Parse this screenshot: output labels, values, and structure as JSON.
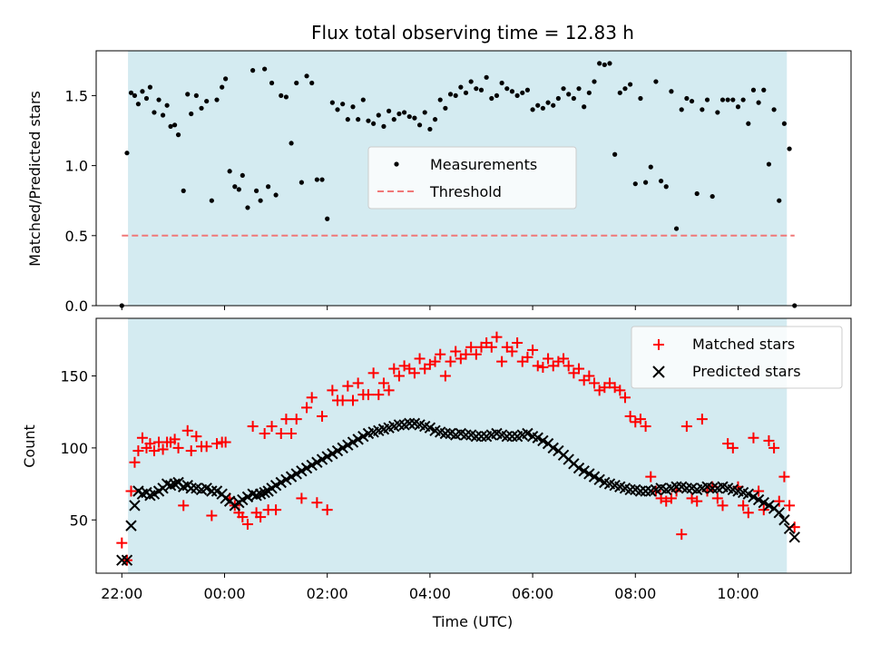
{
  "figure": {
    "title": "Flux total observing time = 12.83 h"
  },
  "chart_data": [
    {
      "type": "scatter",
      "panel": "top",
      "title": "Flux total observing time = 12.83 h",
      "xlabel": "",
      "ylabel": "Matched/Predicted stars",
      "x_unit": "hours since 22:00 UTC (axis shows clock time)",
      "xlim": [
        -0.5,
        14.2
      ],
      "ylim": [
        0,
        1.82
      ],
      "yticks": [
        0.0,
        0.5,
        1.0,
        1.5
      ],
      "ytick_labels": [
        "0.0",
        "0.5",
        "1.0",
        "1.5"
      ],
      "shaded_span": [
        0.12,
        12.95
      ],
      "shade_color": "#d4ebf1",
      "legend": {
        "position": "center",
        "entries": [
          "Measurements",
          "Threshold"
        ]
      },
      "threshold": {
        "name": "Threshold",
        "value": 0.5,
        "x_range": [
          0.0,
          13.1
        ],
        "color": "#f07878",
        "style": "dashed"
      },
      "series": [
        {
          "name": "Measurements",
          "marker": "dot",
          "color": "#000000",
          "x": [
            0.0,
            0.1,
            0.18,
            0.25,
            0.32,
            0.4,
            0.48,
            0.55,
            0.63,
            0.72,
            0.8,
            0.88,
            0.95,
            1.03,
            1.1,
            1.2,
            1.28,
            1.35,
            1.45,
            1.55,
            1.65,
            1.75,
            1.85,
            1.95,
            2.02,
            2.1,
            2.2,
            2.28,
            2.35,
            2.45,
            2.55,
            2.62,
            2.7,
            2.78,
            2.85,
            2.92,
            3.0,
            3.1,
            3.2,
            3.3,
            3.4,
            3.5,
            3.6,
            3.7,
            3.8,
            3.9,
            4.0,
            4.1,
            4.2,
            4.3,
            4.4,
            4.5,
            4.6,
            4.7,
            4.8,
            4.9,
            5.0,
            5.1,
            5.2,
            5.3,
            5.4,
            5.5,
            5.6,
            5.7,
            5.8,
            5.9,
            6.0,
            6.1,
            6.2,
            6.3,
            6.4,
            6.5,
            6.6,
            6.7,
            6.8,
            6.9,
            7.0,
            7.1,
            7.2,
            7.3,
            7.4,
            7.5,
            7.6,
            7.7,
            7.8,
            7.9,
            8.0,
            8.1,
            8.2,
            8.3,
            8.4,
            8.5,
            8.6,
            8.7,
            8.8,
            8.9,
            9.0,
            9.1,
            9.2,
            9.3,
            9.4,
            9.5,
            9.6,
            9.7,
            9.8,
            9.9,
            10.0,
            10.1,
            10.2,
            10.3,
            10.4,
            10.5,
            10.6,
            10.7,
            10.8,
            10.9,
            11.0,
            11.1,
            11.2,
            11.3,
            11.4,
            11.5,
            11.6,
            11.7,
            11.8,
            11.9,
            12.0,
            12.1,
            12.2,
            12.3,
            12.4,
            12.5,
            12.6,
            12.7,
            12.8,
            12.9,
            13.0,
            13.1
          ],
          "y": [
            0.0,
            1.09,
            1.52,
            1.5,
            1.44,
            1.53,
            1.48,
            1.56,
            1.38,
            1.47,
            1.36,
            1.43,
            1.28,
            1.29,
            1.22,
            0.82,
            1.51,
            1.37,
            1.5,
            1.41,
            1.46,
            0.75,
            1.47,
            1.56,
            1.62,
            0.96,
            0.85,
            0.83,
            0.93,
            0.7,
            1.68,
            0.82,
            0.75,
            1.69,
            0.85,
            1.59,
            0.79,
            1.5,
            1.49,
            1.16,
            1.59,
            0.88,
            1.64,
            1.59,
            0.9,
            0.9,
            0.62,
            1.45,
            1.4,
            1.44,
            1.33,
            1.42,
            1.33,
            1.47,
            1.32,
            1.3,
            1.36,
            1.28,
            1.39,
            1.33,
            1.37,
            1.38,
            1.35,
            1.34,
            1.29,
            1.38,
            1.26,
            1.33,
            1.47,
            1.41,
            1.51,
            1.5,
            1.56,
            1.52,
            1.6,
            1.55,
            1.54,
            1.63,
            1.48,
            1.5,
            1.59,
            1.55,
            1.53,
            1.5,
            1.52,
            1.54,
            1.4,
            1.43,
            1.41,
            1.45,
            1.43,
            1.48,
            1.55,
            1.51,
            1.48,
            1.55,
            1.42,
            1.52,
            1.6,
            1.73,
            1.72,
            1.73,
            1.08,
            1.52,
            1.55,
            1.58,
            0.87,
            1.48,
            0.88,
            0.99,
            1.6,
            0.89,
            0.85,
            1.53,
            0.55,
            1.4,
            1.48,
            1.46,
            0.8,
            1.4,
            1.47,
            0.78,
            1.38,
            1.47,
            1.47,
            1.47,
            1.42,
            1.47,
            1.3,
            1.54,
            1.45,
            1.54,
            1.01,
            1.4,
            0.75,
            1.3,
            1.12,
            0.0
          ]
        }
      ]
    },
    {
      "type": "scatter",
      "panel": "bottom",
      "xlabel": "Time (UTC)",
      "ylabel": "Count",
      "x_unit": "hours since 22:00 UTC (axis shows clock time)",
      "xlim": [
        -0.5,
        14.2
      ],
      "ylim": [
        13,
        190
      ],
      "xticks": [
        0,
        2,
        4,
        6,
        8,
        10,
        12
      ],
      "xtick_labels": [
        "22:00",
        "00:00",
        "02:00",
        "04:00",
        "06:00",
        "08:00",
        "10:00"
      ],
      "yticks": [
        50,
        100,
        150
      ],
      "ytick_labels": [
        "50",
        "100",
        "150"
      ],
      "shaded_span": [
        0.12,
        12.95
      ],
      "shade_color": "#d4ebf1",
      "legend": {
        "position": "top-right",
        "entries": [
          "Matched stars",
          "Predicted stars"
        ]
      },
      "series": [
        {
          "name": "Matched stars",
          "marker": "plus",
          "color": "#ff0000",
          "x": [
            0.0,
            0.1,
            0.18,
            0.25,
            0.32,
            0.4,
            0.48,
            0.55,
            0.63,
            0.72,
            0.8,
            0.88,
            0.95,
            1.03,
            1.1,
            1.2,
            1.28,
            1.35,
            1.45,
            1.55,
            1.65,
            1.75,
            1.85,
            1.95,
            2.02,
            2.1,
            2.2,
            2.28,
            2.35,
            2.45,
            2.55,
            2.62,
            2.7,
            2.78,
            2.85,
            2.92,
            3.0,
            3.1,
            3.2,
            3.3,
            3.4,
            3.5,
            3.6,
            3.7,
            3.8,
            3.9,
            4.0,
            4.1,
            4.2,
            4.3,
            4.4,
            4.5,
            4.6,
            4.7,
            4.8,
            4.9,
            5.0,
            5.1,
            5.2,
            5.3,
            5.4,
            5.5,
            5.6,
            5.7,
            5.8,
            5.9,
            6.0,
            6.1,
            6.2,
            6.3,
            6.4,
            6.5,
            6.6,
            6.7,
            6.8,
            6.9,
            7.0,
            7.1,
            7.2,
            7.3,
            7.4,
            7.5,
            7.6,
            7.7,
            7.8,
            7.9,
            8.0,
            8.1,
            8.2,
            8.3,
            8.4,
            8.5,
            8.6,
            8.7,
            8.8,
            8.9,
            9.0,
            9.1,
            9.2,
            9.3,
            9.4,
            9.5,
            9.6,
            9.7,
            9.8,
            9.9,
            10.0,
            10.1,
            10.2,
            10.3,
            10.4,
            10.5,
            10.6,
            10.7,
            10.8,
            10.9,
            11.0,
            11.1,
            11.2,
            11.3,
            11.4,
            11.5,
            11.6,
            11.7,
            11.8,
            11.9,
            12.0,
            12.1,
            12.2,
            12.3,
            12.4,
            12.5,
            12.6,
            12.7,
            12.8,
            12.9,
            13.0,
            13.1
          ],
          "y": [
            34,
            22,
            70,
            90,
            98,
            107,
            100,
            103,
            98,
            104,
            99,
            104,
            104,
            106,
            100,
            60,
            112,
            98,
            108,
            101,
            101,
            53,
            103,
            104,
            104,
            65,
            60,
            55,
            52,
            47,
            115,
            55,
            52,
            110,
            57,
            115,
            57,
            110,
            120,
            110,
            120,
            65,
            128,
            135,
            62,
            122,
            57,
            140,
            133,
            133,
            143,
            133,
            145,
            137,
            137,
            152,
            137,
            145,
            140,
            155,
            150,
            157,
            155,
            152,
            162,
            155,
            158,
            160,
            165,
            150,
            160,
            167,
            162,
            165,
            170,
            165,
            170,
            173,
            170,
            177,
            160,
            170,
            167,
            173,
            160,
            163,
            168,
            157,
            156,
            162,
            157,
            160,
            162,
            157,
            152,
            155,
            147,
            150,
            145,
            140,
            142,
            145,
            142,
            140,
            135,
            122,
            118,
            120,
            115,
            80,
            70,
            65,
            63,
            65,
            70,
            40,
            115,
            65,
            63,
            120,
            70,
            73,
            65,
            60,
            103,
            100,
            73,
            60,
            55,
            107,
            70,
            57,
            105,
            100,
            63,
            80,
            60,
            45
          ]
        },
        {
          "name": "Predicted stars",
          "marker": "x",
          "color": "#000000",
          "x": [
            0.0,
            0.1,
            0.18,
            0.25,
            0.32,
            0.4,
            0.48,
            0.55,
            0.63,
            0.72,
            0.8,
            0.88,
            0.95,
            1.03,
            1.1,
            1.2,
            1.28,
            1.35,
            1.45,
            1.55,
            1.65,
            1.75,
            1.85,
            1.95,
            2.02,
            2.1,
            2.2,
            2.28,
            2.35,
            2.45,
            2.55,
            2.62,
            2.7,
            2.78,
            2.85,
            2.92,
            3.0,
            3.1,
            3.2,
            3.3,
            3.4,
            3.5,
            3.6,
            3.7,
            3.8,
            3.9,
            4.0,
            4.1,
            4.2,
            4.3,
            4.4,
            4.5,
            4.6,
            4.7,
            4.8,
            4.9,
            5.0,
            5.1,
            5.2,
            5.3,
            5.4,
            5.5,
            5.6,
            5.7,
            5.8,
            5.9,
            6.0,
            6.1,
            6.2,
            6.3,
            6.4,
            6.5,
            6.6,
            6.7,
            6.8,
            6.9,
            7.0,
            7.1,
            7.2,
            7.3,
            7.4,
            7.5,
            7.6,
            7.7,
            7.8,
            7.9,
            8.0,
            8.1,
            8.2,
            8.3,
            8.4,
            8.5,
            8.6,
            8.7,
            8.8,
            8.9,
            9.0,
            9.1,
            9.2,
            9.3,
            9.4,
            9.5,
            9.6,
            9.7,
            9.8,
            9.9,
            10.0,
            10.1,
            10.2,
            10.3,
            10.4,
            10.5,
            10.6,
            10.7,
            10.8,
            10.9,
            11.0,
            11.1,
            11.2,
            11.3,
            11.4,
            11.5,
            11.6,
            11.7,
            11.8,
            11.9,
            12.0,
            12.1,
            12.2,
            12.3,
            12.4,
            12.5,
            12.6,
            12.7,
            12.8,
            12.9,
            13.0,
            13.1
          ],
          "y": [
            22,
            22,
            46,
            60,
            70,
            68,
            69,
            67,
            68,
            70,
            72,
            75,
            74,
            75,
            76,
            73,
            74,
            72,
            72,
            71,
            72,
            70,
            70,
            68,
            65,
            63,
            60,
            62,
            64,
            66,
            68,
            67,
            68,
            69,
            70,
            72,
            74,
            76,
            78,
            80,
            82,
            84,
            86,
            88,
            90,
            92,
            94,
            96,
            98,
            100,
            102,
            104,
            106,
            108,
            110,
            111,
            112,
            113,
            114,
            115,
            116,
            116,
            117,
            117,
            116,
            115,
            114,
            112,
            111,
            110,
            110,
            109,
            110,
            109,
            109,
            108,
            108,
            108,
            109,
            110,
            109,
            108,
            108,
            108,
            109,
            110,
            108,
            107,
            105,
            103,
            100,
            98,
            95,
            92,
            89,
            86,
            84,
            82,
            80,
            78,
            76,
            75,
            74,
            73,
            72,
            71,
            71,
            70,
            70,
            70,
            71,
            72,
            71,
            72,
            73,
            73,
            72,
            72,
            71,
            72,
            73,
            72,
            72,
            73,
            72,
            71,
            70,
            69,
            68,
            66,
            64,
            62,
            60,
            58,
            55,
            50,
            44,
            38
          ]
        }
      ]
    }
  ]
}
